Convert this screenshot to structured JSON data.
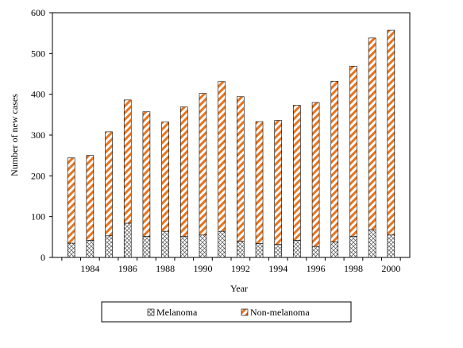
{
  "chart_data": {
    "type": "bar",
    "stacked": true,
    "x": [
      1983,
      1984,
      1985,
      1986,
      1987,
      1988,
      1989,
      1990,
      1991,
      1992,
      1993,
      1994,
      1995,
      1996,
      1997,
      1998,
      1999,
      2000
    ],
    "x_tick_labels": [
      "1984",
      "1986",
      "1988",
      "1990",
      "1992",
      "1994",
      "1996",
      "1998",
      "2000"
    ],
    "series": [
      {
        "name": "Melanoma",
        "pattern": "crosshatch",
        "color": "#555555",
        "values": [
          35,
          42,
          53,
          84,
          52,
          64,
          52,
          55,
          64,
          40,
          34,
          32,
          42,
          27,
          38,
          52,
          68,
          55
        ]
      },
      {
        "name": "Non-melanoma",
        "pattern": "diagonal-stripes",
        "color": "#e8741e",
        "values": [
          209,
          208,
          255,
          302,
          305,
          268,
          317,
          347,
          367,
          354,
          299,
          304,
          331,
          353,
          394,
          417,
          470,
          502
        ]
      }
    ],
    "xlabel": "Year",
    "ylabel": "Number of new cases",
    "ylim": [
      0,
      600
    ],
    "yticks": [
      0,
      100,
      200,
      300,
      400,
      500,
      600
    ],
    "grid": false,
    "legend": {
      "position": "bottom",
      "entries": [
        "Melanoma",
        "Non-melanoma"
      ]
    }
  }
}
